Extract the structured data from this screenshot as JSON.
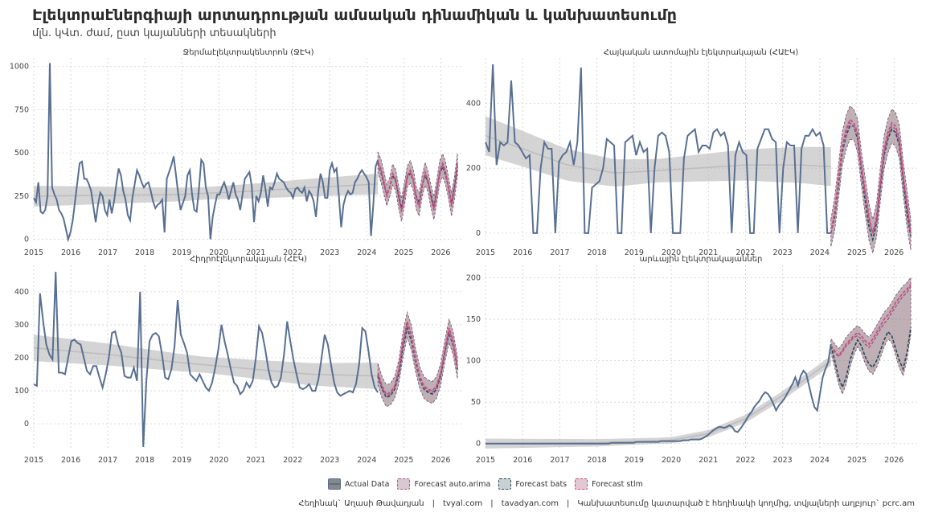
{
  "title": "Էլեկտրաէներգիայի արտադրության ամսական դինամիկան և կանխատեսումը",
  "subtitle": "մլն. կՎտ. ժամ, ըստ կայանների տեսակների",
  "colors": {
    "actual": "#586f92",
    "trend": "#c8c8c8",
    "band": "#b8b8b8",
    "forecast_fill": "#8a7078",
    "arima": "#b05a92",
    "bats": "#234a5a",
    "stlm": "#c74b7b"
  },
  "legend": {
    "items": [
      {
        "label": "Actual Data",
        "key": "actual"
      },
      {
        "label": "Forecast auto.arima",
        "key": "arima"
      },
      {
        "label": "Forecast bats",
        "key": "bats"
      },
      {
        "label": "Forecast stlm",
        "key": "stlm"
      }
    ]
  },
  "caption": {
    "author": "Հեղինակ` Աղասի Թավադյան",
    "site1": "tvyal.com",
    "site2": "tavadyan.com",
    "note": "Կանխատեսումը կատարված է հեղինակի կողմից, տվյալների աղբյուր` pcrc.am",
    "sep": "|"
  },
  "chart_data": [
    {
      "type": "line",
      "title": "Ջերմաէլեկտրակենտրոն (ՋԷԿ)",
      "xlim": [
        2015,
        2026.6
      ],
      "ylim": [
        -20,
        1050
      ],
      "yticks": [
        0,
        250,
        500,
        750,
        1000
      ],
      "xticks": [
        2015,
        2016,
        2017,
        2018,
        2019,
        2020,
        2021,
        2022,
        2023,
        2024,
        2025,
        2026
      ],
      "actual_start": 2015.0,
      "actual": [
        240,
        215,
        330,
        160,
        150,
        170,
        250,
        1020,
        300,
        260,
        230,
        170,
        150,
        120,
        60,
        0,
        40,
        110,
        220,
        330,
        440,
        450,
        350,
        350,
        320,
        280,
        190,
        100,
        200,
        270,
        250,
        170,
        140,
        230,
        150,
        220,
        320,
        410,
        370,
        280,
        230,
        140,
        110,
        240,
        320,
        400,
        370,
        330,
        300,
        320,
        330,
        280,
        220,
        180,
        200,
        210,
        230,
        40,
        350,
        390,
        430,
        480,
        370,
        260,
        170,
        210,
        250,
        370,
        400,
        260,
        170,
        160,
        290,
        460,
        440,
        300,
        250,
        0,
        130,
        200,
        260,
        260,
        300,
        330,
        290,
        230,
        280,
        330,
        260,
        230,
        170,
        260,
        350,
        370,
        390,
        310,
        100,
        250,
        220,
        270,
        370,
        290,
        190,
        300,
        290,
        330,
        380,
        350,
        340,
        330,
        300,
        280,
        270,
        240,
        290,
        300,
        280,
        270,
        300,
        220,
        280,
        260,
        220,
        130,
        280,
        380,
        330,
        240,
        240,
        400,
        440,
        390,
        410,
        250,
        70,
        200,
        250,
        280,
        260,
        270,
        330,
        350,
        380,
        400,
        380,
        360,
        330,
        20,
        200,
        420,
        460
      ],
      "trend": [
        {
          "x": 2015,
          "y": 250
        },
        {
          "x": 2017,
          "y": 255
        },
        {
          "x": 2019,
          "y": 260
        },
        {
          "x": 2021,
          "y": 280
        },
        {
          "x": 2022.5,
          "y": 300
        },
        {
          "x": 2024.3,
          "y": 320
        }
      ],
      "trend_band": 60,
      "forecast_start": 2024.3,
      "forecast": {
        "arima": [
          440,
          400,
          330,
          260,
          300,
          380,
          340,
          250,
          170,
          260,
          370,
          390,
          340,
          240,
          200,
          310,
          380,
          330,
          250,
          180,
          280,
          390,
          430,
          380,
          300,
          200,
          300,
          430
        ],
        "bats": [
          440,
          390,
          320,
          260,
          300,
          370,
          340,
          260,
          180,
          270,
          360,
          380,
          340,
          250,
          210,
          310,
          370,
          330,
          260,
          190,
          290,
          380,
          420,
          370,
          300,
          210,
          310,
          420
        ],
        "stlm": [
          450,
          410,
          340,
          250,
          300,
          380,
          350,
          240,
          160,
          250,
          370,
          400,
          350,
          230,
          190,
          300,
          390,
          340,
          240,
          170,
          270,
          400,
          440,
          390,
          290,
          190,
          290,
          440
        ]
      },
      "forecast_band": 80
    },
    {
      "type": "line",
      "title": "Հայկական ատոմային էլեկտրակայան (ՀԱԷԿ)",
      "xlim": [
        2015,
        2026.6
      ],
      "ylim": [
        -30,
        540
      ],
      "yticks": [
        0,
        200,
        400
      ],
      "xticks": [
        2015,
        2016,
        2017,
        2018,
        2019,
        2020,
        2021,
        2022,
        2023,
        2024,
        2025,
        2026
      ],
      "actual_start": 2015.0,
      "actual": [
        280,
        250,
        520,
        210,
        280,
        270,
        280,
        470,
        280,
        270,
        250,
        230,
        240,
        0,
        0,
        200,
        280,
        260,
        260,
        0,
        220,
        240,
        250,
        280,
        210,
        280,
        510,
        0,
        0,
        140,
        150,
        160,
        200,
        290,
        280,
        270,
        0,
        0,
        280,
        290,
        300,
        240,
        280,
        250,
        260,
        0,
        200,
        300,
        310,
        300,
        250,
        0,
        0,
        0,
        230,
        300,
        310,
        320,
        250,
        270,
        270,
        260,
        310,
        320,
        300,
        310,
        270,
        0,
        240,
        280,
        250,
        240,
        0,
        0,
        260,
        290,
        320,
        320,
        290,
        280,
        0,
        200,
        280,
        270,
        270,
        0,
        260,
        300,
        300,
        320,
        300,
        310,
        270,
        0,
        0
      ],
      "trend": [
        {
          "x": 2015,
          "y": 300
        },
        {
          "x": 2016,
          "y": 260
        },
        {
          "x": 2017.2,
          "y": 210
        },
        {
          "x": 2018.5,
          "y": 185
        },
        {
          "x": 2020,
          "y": 195
        },
        {
          "x": 2022,
          "y": 210
        },
        {
          "x": 2023.5,
          "y": 210
        },
        {
          "x": 2024.3,
          "y": 205
        }
      ],
      "trend_band": 60,
      "forecast_start": 2024.3,
      "forecast": {
        "arima": [
          0,
          60,
          160,
          260,
          310,
          340,
          330,
          300,
          200,
          120,
          40,
          0,
          40,
          150,
          250,
          300,
          330,
          320,
          280,
          170,
          80,
          0
        ],
        "bats": [
          0,
          50,
          150,
          250,
          300,
          330,
          330,
          290,
          190,
          100,
          20,
          -20,
          30,
          140,
          240,
          290,
          320,
          310,
          270,
          160,
          60,
          -10
        ],
        "stlm": [
          0,
          70,
          170,
          270,
          320,
          350,
          340,
          310,
          210,
          130,
          50,
          0,
          50,
          160,
          260,
          310,
          340,
          330,
          290,
          180,
          90,
          0
        ]
      },
      "forecast_band": 60
    },
    {
      "type": "line",
      "title": "Հիդրոէլեկտրակայան (ՀԷԿ)",
      "xlim": [
        2015,
        2026.6
      ],
      "ylim": [
        -80,
        480
      ],
      "yticks": [
        0,
        100,
        200,
        300,
        400
      ],
      "xticks": [
        2015,
        2016,
        2017,
        2018,
        2019,
        2020,
        2021,
        2022,
        2023,
        2024,
        2025,
        2026
      ],
      "actual_start": 2015.0,
      "actual": [
        120,
        115,
        395,
        310,
        240,
        210,
        195,
        460,
        155,
        155,
        150,
        200,
        250,
        255,
        245,
        240,
        200,
        160,
        150,
        175,
        175,
        140,
        110,
        150,
        200,
        275,
        280,
        240,
        215,
        145,
        140,
        140,
        170,
        130,
        400,
        -70,
        130,
        250,
        270,
        275,
        265,
        210,
        140,
        135,
        165,
        235,
        375,
        270,
        245,
        215,
        150,
        140,
        130,
        150,
        130,
        110,
        100,
        125,
        170,
        225,
        300,
        250,
        210,
        165,
        125,
        115,
        90,
        100,
        125,
        110,
        130,
        200,
        295,
        275,
        225,
        165,
        125,
        110,
        115,
        140,
        210,
        310,
        250,
        195,
        150,
        110,
        105,
        110,
        120,
        100,
        100,
        135,
        200,
        270,
        240,
        180,
        125,
        95,
        85,
        90,
        95,
        100,
        95,
        120,
        180,
        290,
        280,
        220,
        150,
        110,
        95
      ],
      "trend": [
        {
          "x": 2015,
          "y": 230
        },
        {
          "x": 2017,
          "y": 210
        },
        {
          "x": 2019,
          "y": 185
        },
        {
          "x": 2021,
          "y": 165
        },
        {
          "x": 2022.5,
          "y": 150
        },
        {
          "x": 2024.3,
          "y": 145
        }
      ],
      "trend_band": 40,
      "forecast_start": 2024.3,
      "forecast": {
        "arima": [
          150,
          110,
          85,
          90,
          110,
          160,
          240,
          300,
          260,
          190,
          140,
          110,
          100,
          95,
          110,
          150,
          220,
          280,
          240,
          170
        ],
        "bats": [
          145,
          105,
          80,
          85,
          105,
          150,
          230,
          290,
          250,
          185,
          135,
          105,
          95,
          90,
          105,
          145,
          215,
          275,
          235,
          165
        ],
        "stlm": [
          155,
          115,
          90,
          95,
          115,
          165,
          250,
          310,
          270,
          200,
          145,
          115,
          105,
          100,
          115,
          155,
          225,
          290,
          250,
          175
        ]
      },
      "forecast_band": 40
    },
    {
      "type": "line",
      "title": "արևային էլեկտրակայաններ",
      "xlim": [
        2015,
        2026.6
      ],
      "ylim": [
        -8,
        215
      ],
      "yticks": [
        0,
        50,
        100,
        150,
        200
      ],
      "xticks": [
        2015,
        2016,
        2017,
        2018,
        2019,
        2020,
        2021,
        2022,
        2023,
        2024,
        2025,
        2026
      ],
      "actual_start": 2015.0,
      "actual": [
        0,
        0,
        0,
        0,
        0,
        0,
        0,
        0,
        0,
        0,
        0,
        0,
        0,
        0,
        0,
        0,
        0,
        0,
        0,
        0,
        0,
        0,
        0,
        0,
        0,
        0,
        0,
        0,
        0,
        0,
        0,
        0,
        0,
        0,
        0,
        0,
        0,
        0,
        0,
        0,
        0,
        0,
        0,
        0,
        0,
        0,
        1,
        1,
        1,
        1,
        1,
        1,
        1,
        1,
        1,
        2,
        2,
        2,
        2,
        2,
        2,
        2,
        2,
        2,
        3,
        3,
        3,
        3,
        3,
        3,
        3,
        3,
        4,
        4,
        4,
        5,
        5,
        5,
        5,
        6,
        8,
        10,
        13,
        16,
        18,
        20,
        20,
        19,
        20,
        22,
        20,
        15,
        14,
        18,
        23,
        28,
        34,
        38,
        44,
        48,
        52,
        58,
        62,
        60,
        55,
        48,
        40,
        46,
        50,
        54,
        60,
        66,
        72,
        80,
        70,
        82,
        88,
        84,
        70,
        56,
        44,
        40,
        60,
        80,
        90,
        98,
        120
      ],
      "trend": [
        {
          "x": 2015,
          "y": 0
        },
        {
          "x": 2018,
          "y": 1
        },
        {
          "x": 2020,
          "y": 4
        },
        {
          "x": 2021,
          "y": 12
        },
        {
          "x": 2022,
          "y": 30
        },
        {
          "x": 2023,
          "y": 58
        },
        {
          "x": 2024.3,
          "y": 100
        }
      ],
      "trend_band": 6,
      "forecast_start": 2024.3,
      "forecast": {
        "arima": [
          118,
          110,
          105,
          110,
          118,
          122,
          128,
          130,
          126,
          120,
          116,
          122,
          130,
          138,
          145,
          150,
          158,
          165,
          172,
          178,
          182,
          190
        ],
        "bats": [
          118,
          100,
          80,
          68,
          80,
          100,
          115,
          125,
          118,
          105,
          96,
          92,
          100,
          112,
          125,
          135,
          130,
          115,
          100,
          90,
          110,
          140
        ],
        "stlm": [
          118,
          112,
          106,
          112,
          120,
          125,
          130,
          134,
          130,
          124,
          120,
          126,
          134,
          142,
          150,
          155,
          162,
          170,
          176,
          182,
          186,
          192
        ]
      },
      "forecast_band": 12
    }
  ]
}
